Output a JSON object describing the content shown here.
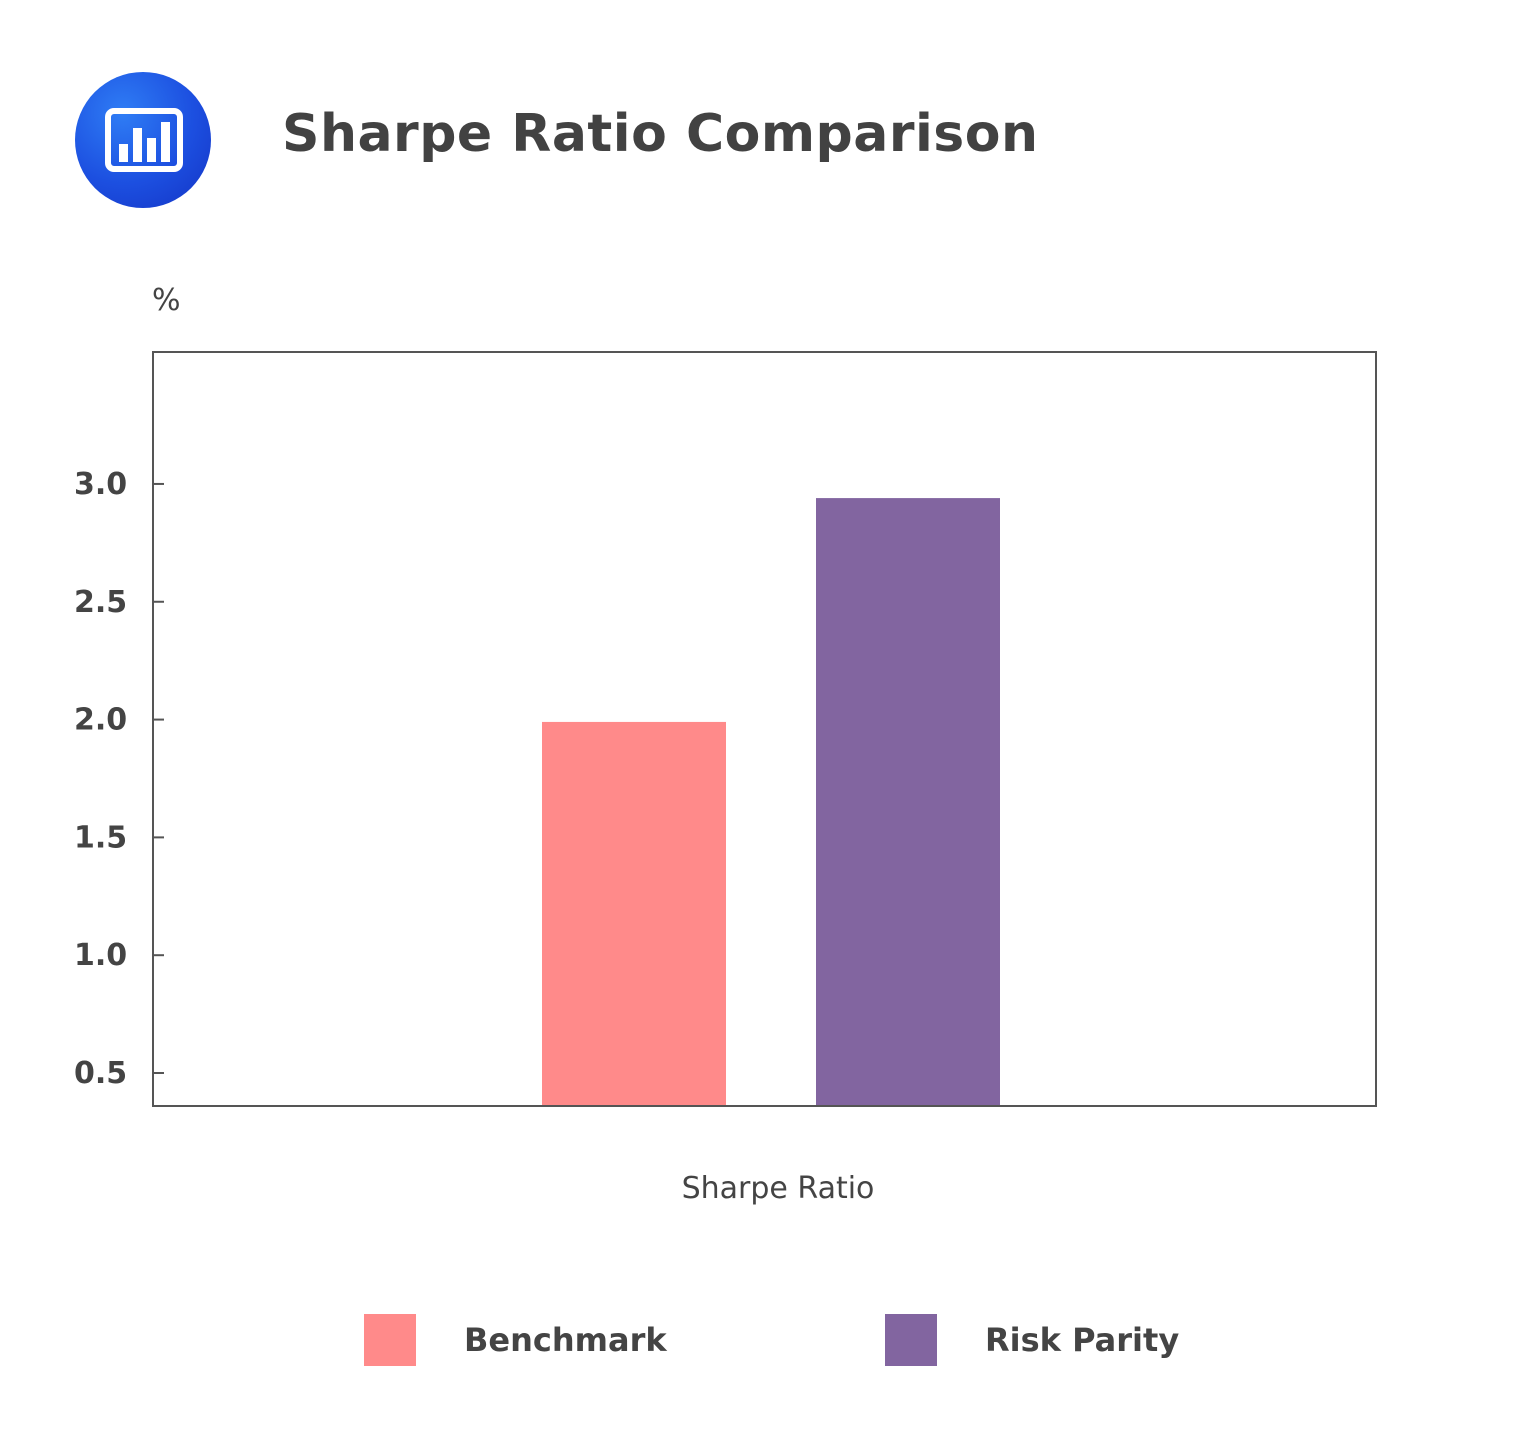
{
  "header": {
    "title": "Sharpe Ratio Comparison",
    "icon": "bar-chart-icon"
  },
  "chart_data": {
    "type": "bar",
    "title": "Sharpe Ratio Comparison",
    "categories": [
      "Sharpe Ratio"
    ],
    "series": [
      {
        "name": "Benchmark",
        "values": [
          1.99
        ],
        "color": "#ff8a8a"
      },
      {
        "name": "Risk Parity",
        "values": [
          2.94
        ],
        "color": "#8265a0"
      }
    ],
    "xlabel": "Sharpe Ratio",
    "ylabel": "%",
    "yticks": [
      0.5,
      1.0,
      1.5,
      2.0,
      2.5,
      3.0
    ],
    "ytick_labels": [
      "0.5",
      "1.0",
      "1.5",
      "2.0",
      "2.5",
      "3.0"
    ],
    "ylim": [
      0.36,
      3.56
    ],
    "grid": false,
    "legend": "bottom"
  }
}
